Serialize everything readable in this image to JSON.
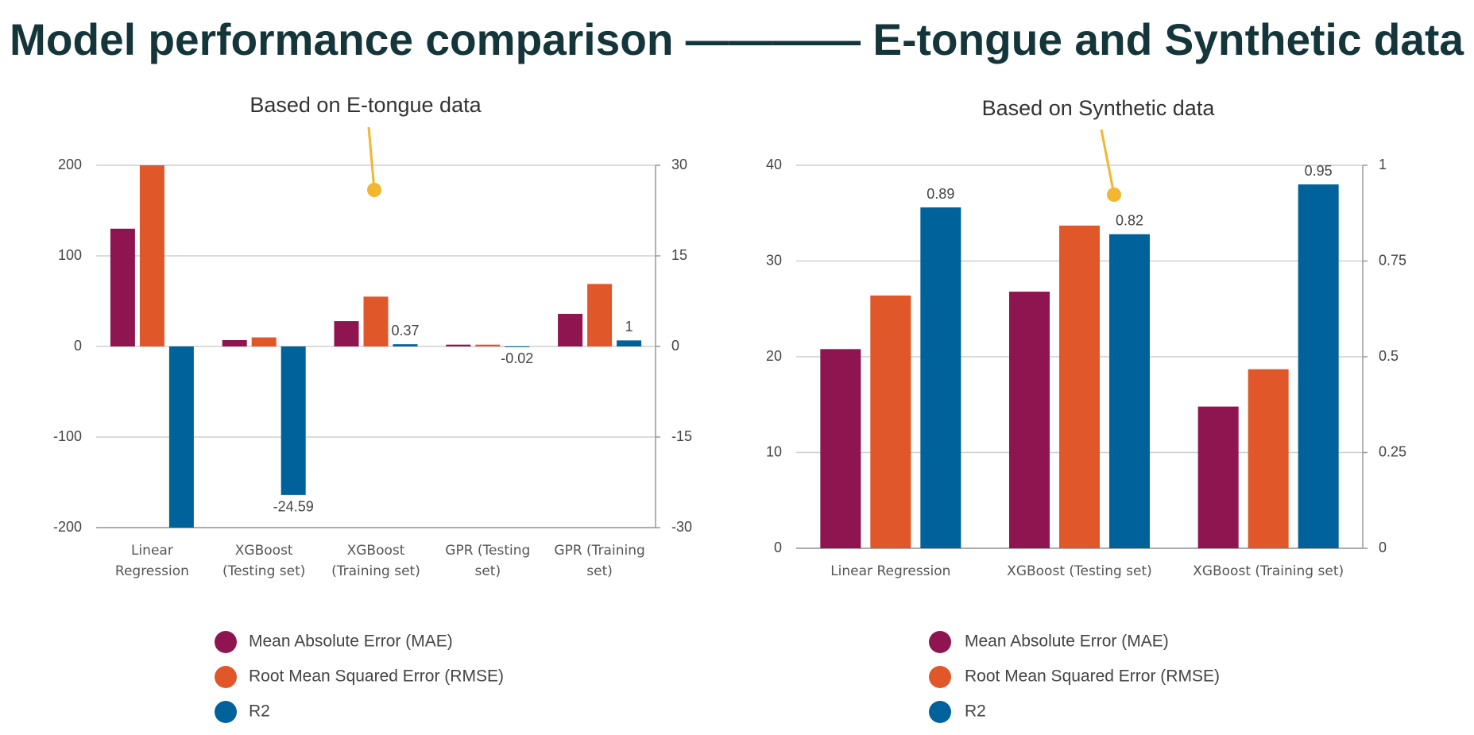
{
  "title": "Model performance comparison ———— E-tongue and Synthetic data",
  "chart_data": [
    {
      "type": "bar",
      "annotation": "Based on E-tongue data",
      "categories": [
        "Linear Regression",
        "XGBoost (Testing set)",
        "XGBoost (Training set)",
        "GPR (Testing set)",
        "GPR (Training set)"
      ],
      "series": [
        {
          "name": "Mean Absolute Error (MAE)",
          "color": "#8e1550",
          "values": [
            130,
            7,
            28,
            2,
            36
          ]
        },
        {
          "name": "Root Mean Squared Error (RMSE)",
          "color": "#e0582a",
          "values": [
            200,
            10,
            55,
            2,
            69
          ]
        },
        {
          "name": "R2",
          "color": "#00629b",
          "axis": "y2",
          "values": [
            -30,
            -24.59,
            0.37,
            -0.02,
            1
          ],
          "value_labels": [
            null,
            "-24.59",
            "0.37",
            "-0.02",
            "1"
          ]
        }
      ],
      "ylim": [
        -200,
        200
      ],
      "yticks": [
        -200,
        -100,
        0,
        100,
        200
      ],
      "y2lim": [
        -30,
        30
      ],
      "y2ticks": [
        -30,
        -15,
        0,
        15,
        30
      ],
      "grid": true
    },
    {
      "type": "bar",
      "annotation": "Based on Synthetic data",
      "categories": [
        "Linear Regression",
        "XGBoost (Testing set)",
        "XGBoost (Training set)"
      ],
      "series": [
        {
          "name": "Mean Absolute Error (MAE)",
          "color": "#8e1550",
          "values": [
            20.8,
            26.8,
            14.8
          ]
        },
        {
          "name": "Root Mean Squared Error (RMSE)",
          "color": "#e0582a",
          "values": [
            26.4,
            33.7,
            18.7
          ]
        },
        {
          "name": "R2",
          "color": "#00629b",
          "axis": "y2",
          "values": [
            0.89,
            0.82,
            0.95
          ],
          "value_labels": [
            "0.89",
            "0.82",
            "0.95"
          ]
        }
      ],
      "ylim": [
        0,
        40
      ],
      "yticks": [
        0,
        10,
        20,
        30,
        40
      ],
      "y2lim": [
        0,
        1
      ],
      "y2ticks": [
        0,
        0.25,
        0.5,
        0.75,
        1
      ],
      "grid": true
    }
  ]
}
